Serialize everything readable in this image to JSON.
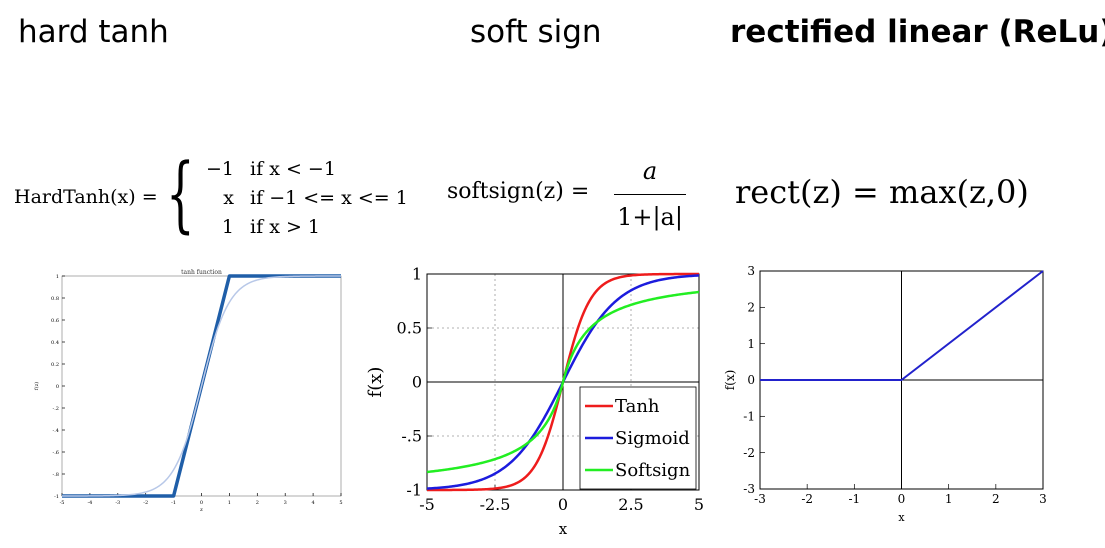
{
  "headings": {
    "hard_tanh": "hard tanh",
    "soft_sign": "soft sign",
    "relu": "rectified linear (ReLu)"
  },
  "formulas": {
    "hardtanh": {
      "lhs": "HardTanh(x) =",
      "rows": [
        {
          "value": "−1",
          "condition": "if x < −1"
        },
        {
          "value": "x",
          "condition": "if −1 <= x <= 1"
        },
        {
          "value": "1",
          "condition": "if x > 1"
        }
      ]
    },
    "softsign": {
      "lhs": "softsign(z) =",
      "numerator": "a",
      "denominator": "1+|a|"
    },
    "rect": {
      "text": "rect(z) = max(z,0)"
    }
  },
  "chart_data": [
    {
      "type": "line",
      "title": "tanh function",
      "xlabel": "z",
      "ylabel": "f(z)",
      "xlim": [
        -5,
        5
      ],
      "ylim": [
        -1,
        1
      ],
      "xticks": [
        -5,
        -4,
        -3,
        -2,
        -1,
        0,
        1,
        2,
        3,
        4,
        5
      ],
      "yticks": [
        -1,
        -0.8,
        -0.6,
        -0.4,
        -0.2,
        0,
        0.2,
        0.4,
        0.6,
        0.8,
        1
      ],
      "grid": false,
      "series": [
        {
          "x": [
            -5,
            -1,
            1,
            5
          ],
          "y": [
            -1,
            -1,
            1,
            1
          ],
          "color": "#1f5ea8"
        },
        {
          "function": "tanh",
          "x_range": [
            -5,
            5
          ],
          "color": "#b8c8e8"
        }
      ]
    },
    {
      "type": "line",
      "xlabel": "x",
      "ylabel": "f(x)",
      "xlim": [
        -5,
        5
      ],
      "ylim": [
        -1,
        1
      ],
      "xticks": [
        -5,
        -2.5,
        0,
        2.5,
        5
      ],
      "yticks": [
        -1,
        -0.5,
        0,
        0.5,
        1
      ],
      "grid": true,
      "legend": "bottom-right",
      "series": [
        {
          "name": "Tanh",
          "function": "tanh",
          "color": "#ee1c1c"
        },
        {
          "name": "Sigmoid",
          "function": "2*sigmoid(x)-1",
          "color": "#1c1cdd"
        },
        {
          "name": "Softsign",
          "function": "x/(1+|x|)",
          "color": "#22ee22"
        }
      ]
    },
    {
      "type": "line",
      "xlabel": "x",
      "ylabel": "f(x)",
      "xlim": [
        -3,
        3
      ],
      "ylim": [
        -3,
        3
      ],
      "xticks": [
        -3,
        -2,
        -1,
        0,
        1,
        2,
        3
      ],
      "yticks": [
        -3,
        -2,
        -1,
        0,
        1,
        2,
        3
      ],
      "grid": false,
      "series": [
        {
          "x": [
            -3,
            0,
            3
          ],
          "y": [
            0,
            0,
            3
          ],
          "color": "#2222cc"
        }
      ]
    }
  ]
}
